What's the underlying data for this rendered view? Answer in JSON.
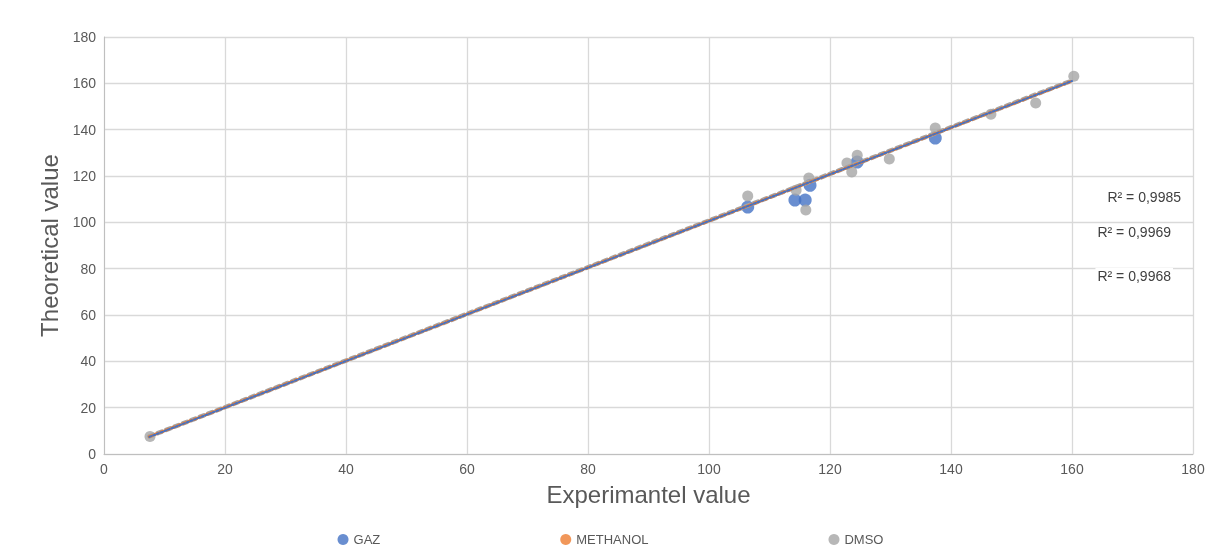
{
  "chart_data": {
    "type": "scatter",
    "xlabel": "Experimantel value",
    "ylabel": "Theoretical value",
    "xlim": [
      0,
      180
    ],
    "xticks": [
      0,
      20,
      40,
      60,
      80,
      100,
      120,
      140,
      160,
      180
    ],
    "ylim": [
      0,
      180
    ],
    "yticks": [
      0,
      20,
      40,
      60,
      80,
      100,
      120,
      140,
      160,
      180
    ],
    "grid": true,
    "legend": "bottom",
    "marker": "circle",
    "annotations": [
      "R² = 0,9985",
      "R² = 0,9969",
      "R² = 0,9968"
    ],
    "series": [
      {
        "type": "line",
        "line_style": "dotted",
        "marker": "none",
        "color": "#4472c4",
        "x": [
          7.5,
          160
        ],
        "values": [
          7.4,
          161
        ]
      },
      {
        "type": "line",
        "line_style": "dotted",
        "marker": "none",
        "color": "#ed7d31",
        "x": [
          7.5,
          160
        ],
        "values": [
          7.5,
          161
        ]
      },
      {
        "type": "line",
        "line_style": "dotted",
        "marker": "none",
        "color": "#a5a5a5",
        "x": [
          7.5,
          160
        ],
        "values": [
          7.6,
          161.2
        ]
      },
      {
        "name": "GAZ",
        "color": "#4472c4",
        "x": [
          106.4,
          114.2,
          115.9,
          116.7,
          124.5,
          137.4
        ],
        "values": [
          106.6,
          109.6,
          109.6,
          116,
          126,
          136.4
        ]
      },
      {
        "name": "METHANOL",
        "color": "#ed7d31"
      },
      {
        "name": "DMSO",
        "color": "#a5a5a5",
        "x": [
          7.6,
          106.4,
          114.4,
          116,
          116.5,
          122.8,
          123.6,
          124.5,
          129.8,
          137.4,
          146.6,
          154,
          160.3
        ],
        "values": [
          7.6,
          111.4,
          113.9,
          105.3,
          119.1,
          125.6,
          121.7,
          129,
          127.3,
          140.7,
          146.7,
          151.5,
          163.1
        ]
      }
    ]
  }
}
